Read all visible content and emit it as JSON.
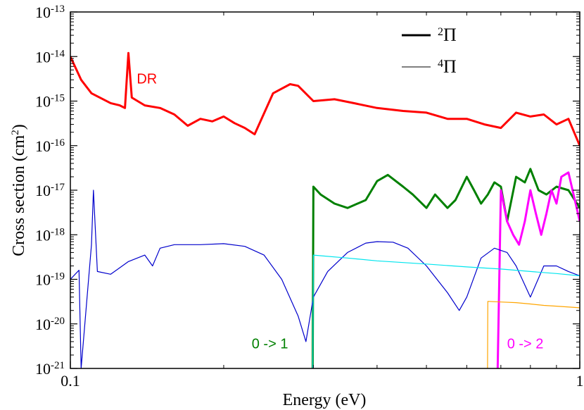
{
  "chart_data": {
    "type": "line",
    "title": "",
    "xlabel": "Energy (eV)",
    "ylabel_main": "Cross section (cm",
    "ylabel_sup": "2",
    "ylabel_close": ")",
    "xscale": "log",
    "yscale": "log",
    "xlim": [
      0.1,
      1
    ],
    "ylim": [
      1e-21,
      1e-13
    ],
    "x_ticks": [
      {
        "value": 0.1,
        "label": "0.1"
      },
      {
        "value": 1,
        "label": "1"
      }
    ],
    "y_ticks": [
      {
        "exp": -21,
        "base": "10",
        "sup": "-21"
      },
      {
        "exp": -20,
        "base": "10",
        "sup": "-20"
      },
      {
        "exp": -19,
        "base": "10",
        "sup": "-19"
      },
      {
        "exp": -18,
        "base": "10",
        "sup": "-18"
      },
      {
        "exp": -17,
        "base": "10",
        "sup": "-17"
      },
      {
        "exp": -16,
        "base": "10",
        "sup": "-16"
      },
      {
        "exp": -15,
        "base": "10",
        "sup": "-15"
      },
      {
        "exp": -14,
        "base": "10",
        "sup": "-14"
      },
      {
        "exp": -13,
        "base": "10",
        "sup": "-13"
      }
    ],
    "legend": {
      "placement": "top-right",
      "entries": [
        {
          "label_sup": "2",
          "label_main": "Π",
          "style": "thick"
        },
        {
          "label_sup": "4",
          "label_main": "Π",
          "style": "thin"
        }
      ]
    },
    "annotations": [
      {
        "text": "DR",
        "color": "#ff0000",
        "x": 0.135,
        "y": 2.5e-15
      },
      {
        "text": "0 -> 1",
        "color": "#008000",
        "x": 0.227,
        "y": 2.8e-21
      },
      {
        "text": "0 -> 2",
        "color": "#ff00ff",
        "x": 0.72,
        "y": 2.8e-21
      }
    ],
    "series": [
      {
        "name": "DR",
        "color": "#ff0000",
        "width": 3,
        "x": [
          0.1,
          0.105,
          0.11,
          0.12,
          0.125,
          0.128,
          0.13,
          0.132,
          0.14,
          0.15,
          0.16,
          0.17,
          0.18,
          0.19,
          0.2,
          0.21,
          0.22,
          0.23,
          0.25,
          0.27,
          0.28,
          0.3,
          0.33,
          0.36,
          0.4,
          0.45,
          0.5,
          0.55,
          0.6,
          0.65,
          0.7,
          0.75,
          0.8,
          0.85,
          0.9,
          0.95,
          1.0
        ],
        "y": [
          1e-14,
          3e-15,
          1.5e-15,
          9e-16,
          8e-16,
          7e-16,
          1.2e-14,
          1.2e-15,
          8e-16,
          7e-16,
          5e-16,
          2.8e-16,
          4e-16,
          3.5e-16,
          4.5e-16,
          3.2e-16,
          2.5e-16,
          1.8e-16,
          1.5e-15,
          2.4e-15,
          2.2e-15,
          1e-15,
          1.1e-15,
          9e-16,
          7e-16,
          6e-16,
          5.5e-16,
          4e-16,
          4e-16,
          3e-16,
          2.5e-16,
          5.5e-16,
          4.5e-16,
          5e-16,
          3e-16,
          4e-16,
          1e-16
        ]
      },
      {
        "name": "2Π 0->1",
        "color": "#008000",
        "width": 3,
        "x": [
          0.299,
          0.3,
          0.31,
          0.33,
          0.35,
          0.38,
          0.4,
          0.42,
          0.45,
          0.47,
          0.5,
          0.52,
          0.55,
          0.57,
          0.6,
          0.62,
          0.64,
          0.66,
          0.68,
          0.7,
          0.72,
          0.75,
          0.78,
          0.8,
          0.83,
          0.86,
          0.9,
          0.95,
          1.0
        ],
        "y": [
          1e-21,
          1.2e-17,
          8e-18,
          5e-18,
          4e-18,
          6e-18,
          1.6e-17,
          2.2e-17,
          1.2e-17,
          8e-18,
          4e-18,
          8e-18,
          4e-18,
          6e-18,
          2e-17,
          1e-17,
          5e-18,
          8e-18,
          1.5e-17,
          1.2e-17,
          2e-18,
          2e-17,
          1.5e-17,
          3e-17,
          1e-17,
          8e-18,
          1.2e-17,
          1e-17,
          4e-18
        ]
      },
      {
        "name": "2Π 0->2",
        "color": "#ff00ff",
        "width": 3,
        "x": [
          0.69,
          0.7,
          0.72,
          0.74,
          0.76,
          0.78,
          0.8,
          0.82,
          0.84,
          0.86,
          0.88,
          0.9,
          0.92,
          0.95,
          1.0
        ],
        "y": [
          1e-21,
          1e-17,
          2e-18,
          1e-18,
          6e-19,
          2e-18,
          1e-17,
          3e-18,
          1e-18,
          3e-18,
          1e-17,
          5e-18,
          2e-17,
          2.5e-17,
          2e-18
        ]
      },
      {
        "name": "4Π DR",
        "color": "#0000cc",
        "width": 1.2,
        "x": [
          0.1,
          0.104,
          0.105,
          0.11,
          0.111,
          0.113,
          0.12,
          0.13,
          0.14,
          0.145,
          0.15,
          0.16,
          0.18,
          0.2,
          0.22,
          0.24,
          0.26,
          0.28,
          0.29,
          0.3,
          0.32,
          0.35,
          0.38,
          0.4,
          0.43,
          0.46,
          0.5,
          0.55,
          0.58,
          0.6,
          0.64,
          0.68,
          0.72,
          0.75,
          0.8,
          0.85,
          0.9,
          0.95,
          1.0
        ],
        "y": [
          1e-19,
          1.6e-19,
          1e-21,
          6e-19,
          1e-17,
          1.5e-19,
          1.3e-19,
          2.5e-19,
          3.5e-19,
          2e-19,
          5e-19,
          6e-19,
          6e-19,
          6.3e-19,
          5.5e-19,
          3.5e-19,
          1e-19,
          1.5e-20,
          4e-21,
          4e-20,
          1.5e-19,
          4e-19,
          6.5e-19,
          7e-19,
          6.8e-19,
          5e-19,
          2e-19,
          5e-20,
          2e-20,
          4e-20,
          3e-19,
          5e-19,
          4e-19,
          2e-19,
          4e-20,
          2e-19,
          2e-19,
          1.5e-19,
          1.2e-19
        ]
      },
      {
        "name": "4Π 0->1",
        "color": "#00e5ee",
        "width": 1.2,
        "x": [
          0.299,
          0.3,
          0.35,
          0.4,
          0.5,
          0.6,
          0.7,
          0.8,
          0.9,
          1.0
        ],
        "y": [
          1e-21,
          3.5e-19,
          3e-19,
          2.6e-19,
          2.2e-19,
          1.9e-19,
          1.7e-19,
          1.5e-19,
          1.35e-19,
          1.2e-19
        ]
      },
      {
        "name": "4Π 0->2",
        "color": "#ffa500",
        "width": 1.2,
        "x": [
          0.659,
          0.66,
          0.7,
          0.75,
          0.8,
          0.85,
          0.9,
          1.0
        ],
        "y": [
          1e-21,
          3.2e-20,
          3.1e-20,
          3e-20,
          2.8e-20,
          2.6e-20,
          2.5e-20,
          2.3e-20
        ]
      }
    ]
  }
}
